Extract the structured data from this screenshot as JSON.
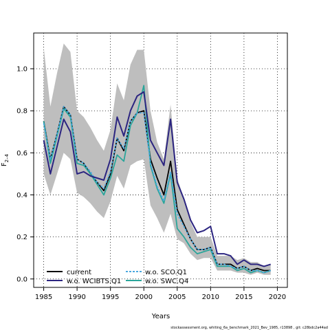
{
  "chart_data": {
    "type": "line",
    "xlabel": "Years",
    "ylabel": "F",
    "ylabel_sub": "2–4",
    "xlim": [
      1983.5,
      2021.5
    ],
    "ylim": [
      -0.04,
      1.17
    ],
    "xticks": [
      1985,
      1990,
      1995,
      2000,
      2005,
      2010,
      2015,
      2020
    ],
    "yticks": [
      0.0,
      0.2,
      0.4,
      0.6,
      0.8,
      1.0
    ],
    "ytick_labels": [
      "0.0",
      "0.2",
      "0.4",
      "0.6",
      "0.8",
      "1.0"
    ],
    "grid": true,
    "x": [
      1985,
      1986,
      1987,
      1988,
      1989,
      1990,
      1991,
      1992,
      1993,
      1994,
      1995,
      1996,
      1997,
      1998,
      1999,
      2000,
      2001,
      2002,
      2003,
      2004,
      2005,
      2006,
      2007,
      2008,
      2009,
      2010,
      2011,
      2012,
      2013,
      2014,
      2015,
      2016,
      2017,
      2018,
      2019
    ],
    "band": {
      "upper": [
        1.1,
        0.82,
        0.98,
        1.12,
        1.08,
        0.8,
        0.77,
        0.72,
        0.66,
        0.61,
        0.71,
        0.93,
        0.85,
        1.02,
        1.09,
        1.09,
        0.8,
        0.65,
        0.57,
        0.83,
        0.48,
        0.38,
        0.27,
        0.2,
        0.2,
        0.2,
        0.11,
        0.11,
        0.11,
        0.09,
        0.1,
        0.08,
        0.08,
        0.06,
        0.07
      ],
      "lower": [
        0.5,
        0.4,
        0.5,
        0.6,
        0.57,
        0.41,
        0.39,
        0.36,
        0.32,
        0.29,
        0.37,
        0.49,
        0.43,
        0.54,
        0.56,
        0.57,
        0.35,
        0.29,
        0.22,
        0.31,
        0.19,
        0.17,
        0.12,
        0.09,
        0.1,
        0.1,
        0.04,
        0.04,
        0.04,
        0.03,
        0.03,
        0.02,
        0.03,
        0.02,
        0.02
      ]
    },
    "series": [
      {
        "name": "current",
        "color": "#000000",
        "dash": "solid",
        "values": [
          0.75,
          0.57,
          0.69,
          0.82,
          0.78,
          0.57,
          0.55,
          0.5,
          0.46,
          0.42,
          0.5,
          0.67,
          0.61,
          0.75,
          0.79,
          0.8,
          0.57,
          0.48,
          0.4,
          0.56,
          0.33,
          0.26,
          0.19,
          0.14,
          0.14,
          0.15,
          0.07,
          0.07,
          0.07,
          0.05,
          0.06,
          0.04,
          0.05,
          0.04,
          0.04
        ]
      },
      {
        "name": "w.o. WCIBTS.Q1",
        "color": "#2b2480",
        "dash": "solid",
        "values": [
          0.66,
          0.5,
          0.63,
          0.76,
          0.7,
          0.5,
          0.51,
          0.49,
          0.48,
          0.47,
          0.57,
          0.77,
          0.68,
          0.8,
          0.87,
          0.89,
          0.66,
          0.6,
          0.54,
          0.76,
          0.46,
          0.38,
          0.28,
          0.22,
          0.23,
          0.25,
          0.12,
          0.12,
          0.11,
          0.07,
          0.09,
          0.07,
          0.07,
          0.06,
          0.07
        ]
      },
      {
        "name": "w.o. SCO.Q1",
        "color": "#4aa8e0",
        "dash": "dashed",
        "values": [
          0.74,
          0.57,
          0.69,
          0.82,
          0.78,
          0.57,
          0.55,
          0.51,
          0.46,
          0.43,
          0.51,
          0.67,
          0.62,
          0.75,
          0.79,
          0.79,
          0.55,
          0.44,
          0.37,
          0.51,
          0.31,
          0.25,
          0.19,
          0.14,
          0.14,
          0.15,
          0.07,
          0.07,
          0.06,
          0.05,
          0.06,
          0.04,
          0.04,
          0.03,
          0.04
        ]
      },
      {
        "name": "w.o. SWC.Q4",
        "color": "#2aa59a",
        "dash": "solid",
        "values": [
          0.75,
          0.55,
          0.68,
          0.81,
          0.77,
          0.55,
          0.54,
          0.5,
          0.45,
          0.4,
          0.48,
          0.59,
          0.56,
          0.73,
          0.79,
          0.92,
          0.54,
          0.43,
          0.36,
          0.5,
          0.24,
          0.2,
          0.15,
          0.12,
          0.13,
          0.14,
          0.06,
          0.06,
          0.06,
          0.04,
          0.05,
          0.03,
          0.04,
          0.03,
          0.04
        ]
      }
    ],
    "legend": {
      "placement": "bottom-left",
      "columns": 2
    }
  },
  "footnote": "stockassessment.org,  whiting_6a_benchmark_2021_Bev_1985,  r13898 ,  git:  c28bdc2a44ad"
}
